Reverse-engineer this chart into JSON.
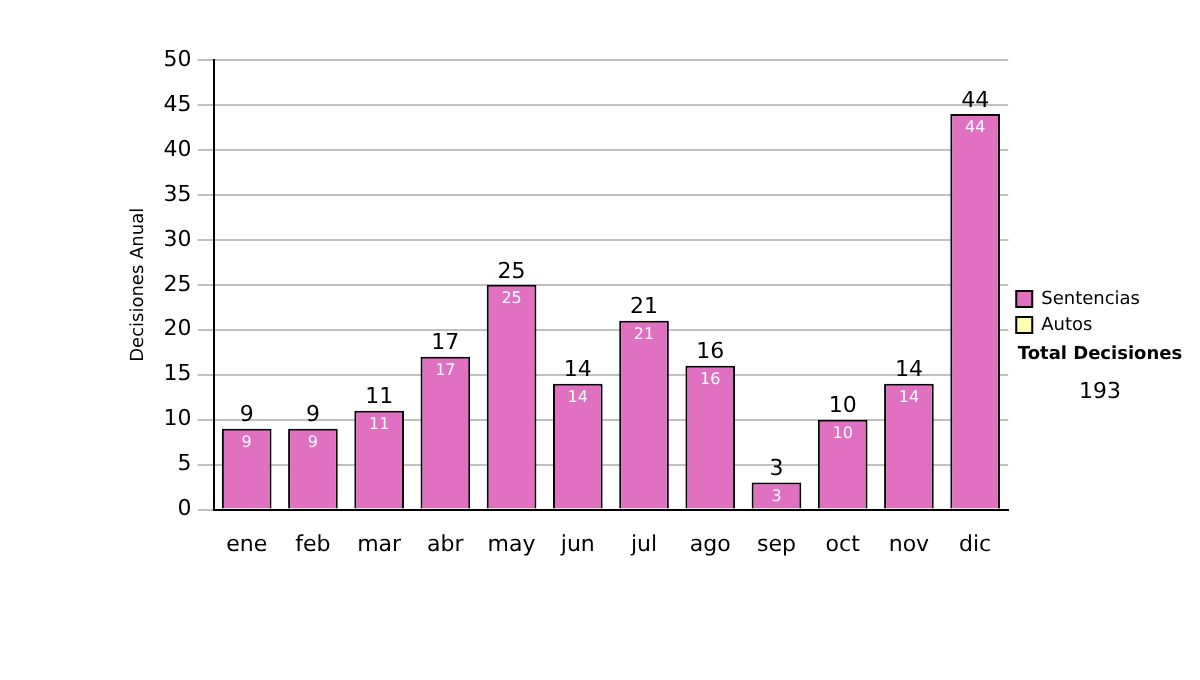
{
  "chart_data": {
    "type": "bar",
    "ylabel": "Decisiones Anual",
    "categories": [
      "ene",
      "feb",
      "mar",
      "abr",
      "may",
      "jun",
      "jul",
      "ago",
      "sep",
      "oct",
      "nov",
      "dic"
    ],
    "series": [
      {
        "name": "Sentencias",
        "color": "#e070c0",
        "values": [
          9,
          9,
          11,
          17,
          25,
          14,
          21,
          16,
          3,
          10,
          14,
          44
        ],
        "value_labels": [
          "9",
          "9",
          "11",
          "17",
          "25",
          "14",
          "21",
          "16",
          "3",
          "10",
          "14",
          "44"
        ]
      },
      {
        "name": "Autos",
        "color": "#ffffb0",
        "values": [
          0,
          0,
          0,
          0,
          0,
          0,
          0,
          0,
          0,
          0,
          0,
          0
        ],
        "value_labels": [
          null,
          null,
          null,
          null,
          null,
          null,
          null,
          null,
          null,
          null,
          null,
          null
        ]
      }
    ],
    "stacked": true,
    "totals": [
      "9",
      "9",
      "11",
      "17",
      "25",
      "14",
      "21",
      "16",
      "3",
      "10",
      "14",
      "44"
    ],
    "ylim": [
      0,
      50
    ],
    "yticks": [
      0,
      5,
      10,
      15,
      20,
      25,
      30,
      35,
      40,
      45,
      50
    ],
    "grid": "y",
    "legend": "right",
    "annotations": [
      "Total Decisiones",
      "193"
    ]
  }
}
